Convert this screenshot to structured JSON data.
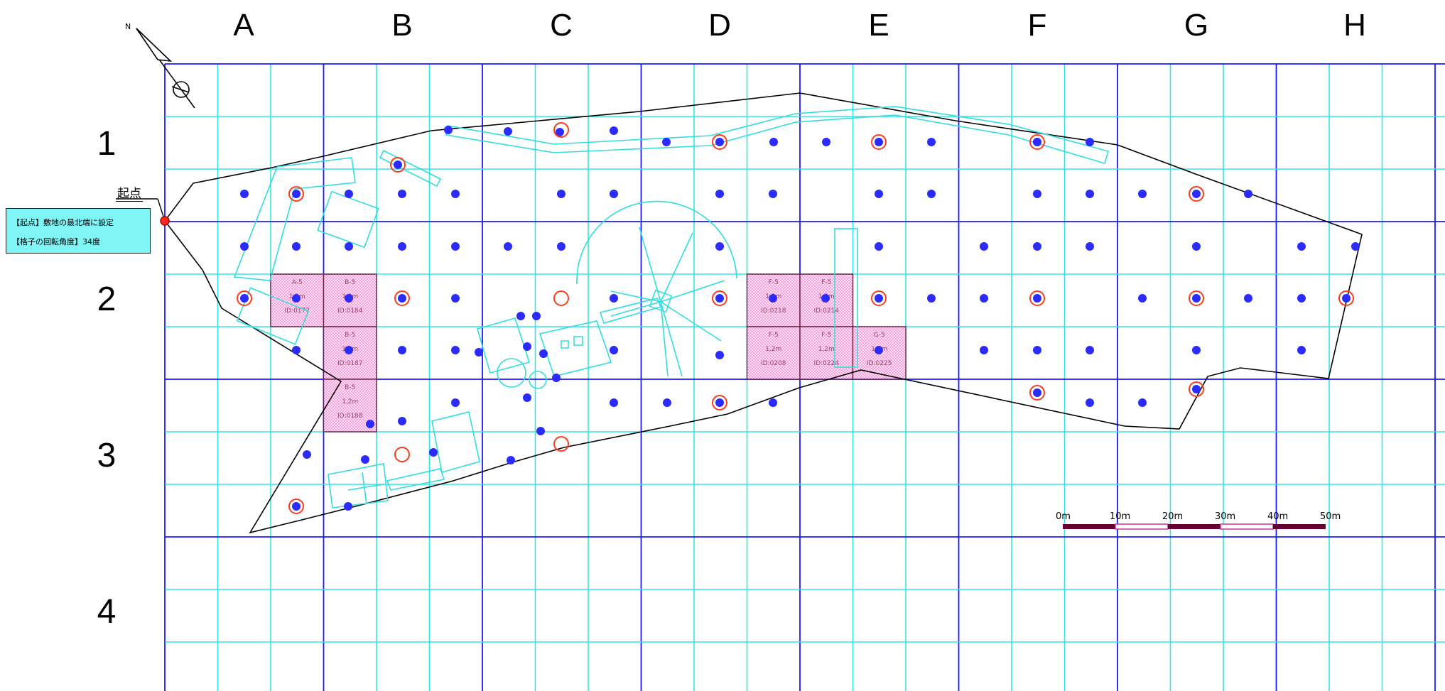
{
  "compass": {
    "north_label": "N",
    "icon": "compass-north-arrow-icon"
  },
  "columns": [
    "A",
    "B",
    "C",
    "D",
    "E",
    "F",
    "G",
    "H"
  ],
  "rows": [
    "1",
    "2",
    "3",
    "4"
  ],
  "origin": {
    "label": "起点"
  },
  "legend": {
    "line1": "【起点】敷地の最北端に設定",
    "line2": "【格子の回転角度】34度"
  },
  "scale": {
    "ticks": [
      "0m",
      "10m",
      "20m",
      "30m",
      "40m",
      "50m"
    ]
  },
  "colors": {
    "major_grid": "#1a1aff",
    "minor_grid": "#33e6e6",
    "sample_dot": "#2b2bff",
    "red_ring": "#ff3b1f",
    "boundary": "#000000",
    "hatched_cell": "#ff66cc"
  },
  "hatched_cells": [
    {
      "cell": "A-2",
      "lines": [
        "A-5",
        "1,2m",
        "ID:0177"
      ]
    },
    {
      "cell": "B-2",
      "lines": [
        "B-5",
        "1,2m",
        "ID:0184"
      ]
    },
    {
      "cell": "B-2",
      "lines": [
        "B-5",
        "1,2m",
        "ID:0187"
      ]
    },
    {
      "cell": "B-2",
      "lines": [
        "B-5",
        "1,2m",
        "ID:0188"
      ]
    },
    {
      "cell": "F-2",
      "lines": [
        "F-5",
        "1,2m",
        "ID:0218"
      ]
    },
    {
      "cell": "F-2",
      "lines": [
        "F-5",
        "1,2m",
        "ID:0214"
      ]
    },
    {
      "cell": "F-2",
      "lines": [
        "F-5",
        "1,2m",
        "ID:0208"
      ]
    },
    {
      "cell": "F-2",
      "lines": [
        "F-5",
        "1,2m",
        "ID:0224"
      ]
    },
    {
      "cell": "G-2",
      "lines": [
        "G-5",
        "1,2m",
        "ID:0225"
      ]
    }
  ]
}
